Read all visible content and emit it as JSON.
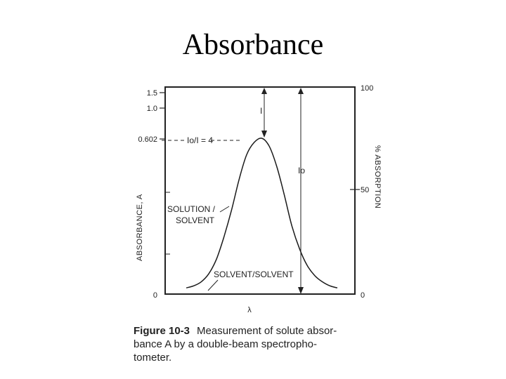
{
  "slide": {
    "title": "Absorbance"
  },
  "figure": {
    "label": "Figure 10-3",
    "caption_lines": [
      "Measurement of solute absor-",
      "bance A by a double-beam spectropho-",
      "tometer."
    ]
  },
  "chart_data": {
    "type": "line",
    "title": "",
    "xlabel": "λ",
    "ylabel": "ABSORBANCE, A",
    "ylabel_right": "% ABSORPTION",
    "left_axis_ticks": [
      "1.5",
      "1.0",
      "0.602",
      "0"
    ],
    "right_axis_ticks": [
      "100",
      "50",
      "0"
    ],
    "ylim_right": [
      0,
      100
    ],
    "grid": false,
    "series": [
      {
        "x": [
          0,
          0.05,
          0.1,
          0.15,
          0.2,
          0.25,
          0.3,
          0.35,
          0.4,
          0.45,
          0.5,
          0.55,
          0.6,
          0.65,
          0.7,
          0.75,
          0.8,
          0.85,
          0.9,
          0.95,
          1.0
        ],
        "values": [
          2,
          3,
          5,
          9,
          16,
          27,
          40,
          55,
          67,
          73,
          75,
          71,
          61,
          47,
          32,
          21,
          13,
          8,
          5,
          3,
          2
        ]
      }
    ],
    "annotations": {
      "io_over_i": "Io/I = 4",
      "i_label": "I",
      "io_label": "Io",
      "solution_label_1": "SOLUTION /",
      "solution_label_2": "SOLVENT",
      "solvent_label": "SOLVENT/SOLVENT"
    },
    "colors": {
      "ink": "#222222",
      "background": "#ffffff"
    }
  }
}
